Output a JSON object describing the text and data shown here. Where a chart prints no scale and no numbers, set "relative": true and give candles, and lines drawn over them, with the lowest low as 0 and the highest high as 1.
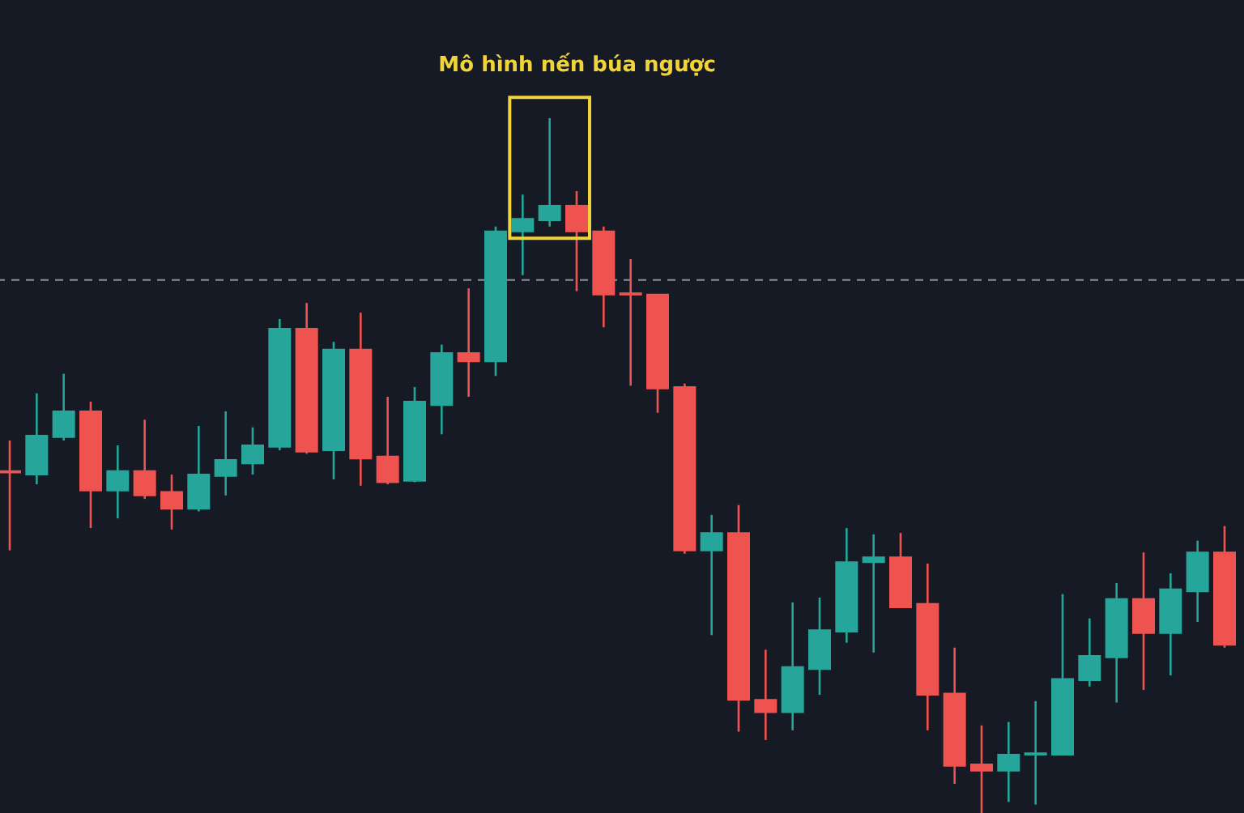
{
  "chart_data": {
    "type": "candlestick",
    "relative": true,
    "categories": [
      null,
      null,
      null,
      null,
      null,
      null,
      null,
      null,
      null,
      null,
      null,
      null,
      null,
      null,
      null,
      null,
      null,
      null,
      null,
      null,
      null,
      null,
      null,
      null,
      null,
      null,
      null,
      null,
      null,
      null,
      null,
      null,
      null,
      null,
      null,
      null,
      null,
      null,
      null,
      null,
      null,
      null,
      null,
      null,
      null,
      null
    ],
    "ohlc": [
      [
        0.492,
        0.536,
        0.378,
        0.49
      ],
      [
        0.487,
        0.604,
        0.473,
        0.543
      ],
      [
        0.541,
        0.632,
        0.536,
        0.578
      ],
      [
        0.578,
        0.592,
        0.41,
        0.464
      ],
      [
        0.464,
        0.529,
        0.424,
        0.492
      ],
      [
        0.492,
        0.566,
        0.452,
        0.457
      ],
      [
        0.462,
        0.487,
        0.408,
        0.438
      ],
      [
        0.438,
        0.557,
        0.434,
        0.487
      ],
      [
        0.485,
        0.578,
        0.457,
        0.508
      ],
      [
        0.503,
        0.555,
        0.487,
        0.529
      ],
      [
        0.527,
        0.711,
        0.522,
        0.697
      ],
      [
        0.697,
        0.734,
        0.517,
        0.52
      ],
      [
        0.522,
        0.678,
        0.48,
        0.667
      ],
      [
        0.667,
        0.72,
        0.471,
        0.51
      ],
      [
        0.513,
        0.599,
        0.473,
        0.476
      ],
      [
        0.478,
        0.613,
        0.476,
        0.592
      ],
      [
        0.587,
        0.674,
        0.545,
        0.662
      ],
      [
        0.662,
        0.755,
        0.599,
        0.65
      ],
      [
        0.65,
        0.844,
        0.629,
        0.837
      ],
      [
        0.837,
        0.89,
        0.774,
        0.855
      ],
      [
        0.853,
        1.0,
        0.844,
        0.874
      ],
      [
        0.874,
        0.895,
        0.751,
        0.837
      ],
      [
        0.837,
        0.844,
        0.699,
        0.746
      ],
      [
        0.748,
        0.797,
        0.615,
        0.746
      ],
      [
        0.746,
        0.746,
        0.576,
        0.611
      ],
      [
        0.613,
        0.618,
        0.373,
        0.378
      ],
      [
        0.378,
        0.429,
        0.256,
        0.403
      ],
      [
        0.403,
        0.443,
        0.117,
        0.163
      ],
      [
        0.163,
        0.235,
        0.105,
        0.145
      ],
      [
        0.145,
        0.303,
        0.119,
        0.21
      ],
      [
        0.207,
        0.31,
        0.17,
        0.263
      ],
      [
        0.261,
        0.41,
        0.245,
        0.361
      ],
      [
        0.361,
        0.401,
        0.231,
        0.368
      ],
      [
        0.368,
        0.403,
        0.296,
        0.296
      ],
      [
        0.301,
        0.359,
        0.119,
        0.17
      ],
      [
        0.172,
        0.238,
        0.042,
        0.068
      ],
      [
        0.07,
        0.126,
        0.0,
        0.061
      ],
      [
        0.061,
        0.131,
        0.016,
        0.084
      ],
      [
        0.084,
        0.161,
        0.012,
        0.086
      ],
      [
        0.084,
        0.315,
        0.084,
        0.193
      ],
      [
        0.191,
        0.28,
        0.182,
        0.226
      ],
      [
        0.224,
        0.331,
        0.159,
        0.308
      ],
      [
        0.308,
        0.375,
        0.177,
        0.259
      ],
      [
        0.259,
        0.345,
        0.198,
        0.322
      ],
      [
        0.319,
        0.392,
        0.275,
        0.375
      ],
      [
        0.375,
        0.413,
        0.238,
        0.242
      ]
    ],
    "colors": [
      "#ef5350",
      "#26a69a",
      "#26a69a",
      "#ef5350",
      "#26a69a",
      "#ef5350",
      "#ef5350",
      "#26a69a",
      "#26a69a",
      "#26a69a",
      "#26a69a",
      "#ef5350",
      "#26a69a",
      "#ef5350",
      "#ef5350",
      "#26a69a",
      "#26a69a",
      "#ef5350",
      "#26a69a",
      "#26a69a",
      "#26a69a",
      "#ef5350",
      "#ef5350",
      "#ef5350",
      "#ef5350",
      "#ef5350",
      "#26a69a",
      "#ef5350",
      "#ef5350",
      "#26a69a",
      "#26a69a",
      "#26a69a",
      "#26a69a",
      "#ef5350",
      "#ef5350",
      "#ef5350",
      "#ef5350",
      "#26a69a",
      "#26a69a",
      "#26a69a",
      "#26a69a",
      "#26a69a",
      "#ef5350",
      "#26a69a",
      "#26a69a",
      "#ef5350"
    ],
    "ref_lines": [
      {
        "axis": "y",
        "value": 0.767,
        "line_style": "dashed",
        "color": "#8a8e99"
      }
    ],
    "annotations": [
      "Mô hình nến búa ngược"
    ]
  }
}
